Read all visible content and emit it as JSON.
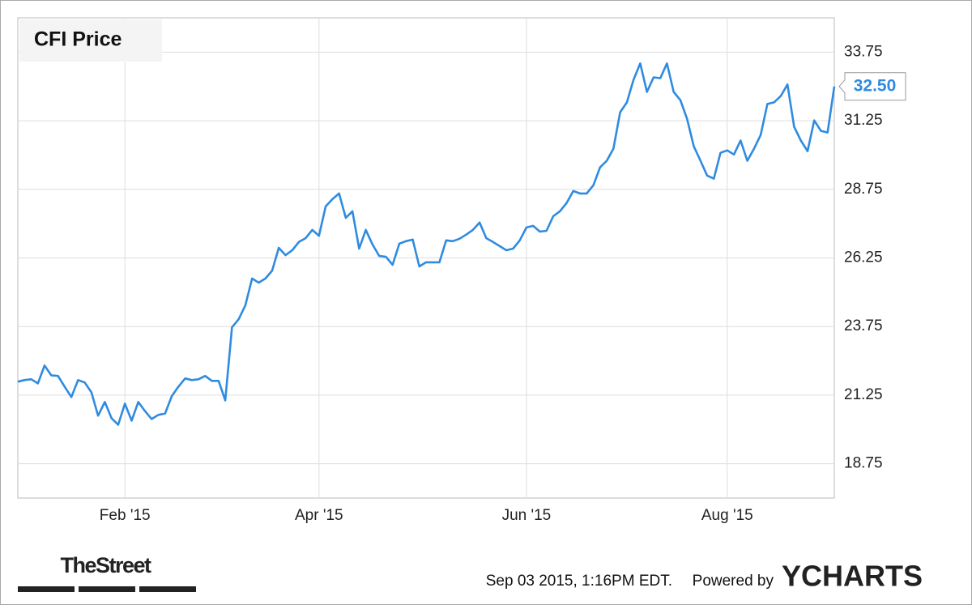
{
  "chart_data": {
    "type": "line",
    "title": "CFI Price",
    "categories": [
      null,
      null,
      null,
      null,
      null,
      null,
      null,
      null,
      null,
      null,
      null,
      null,
      null,
      null,
      null,
      null,
      "Feb '15",
      null,
      null,
      null,
      null,
      null,
      null,
      null,
      null,
      null,
      null,
      null,
      null,
      null,
      null,
      null,
      null,
      null,
      null,
      null,
      null,
      null,
      null,
      null,
      null,
      null,
      null,
      null,
      null,
      "Apr '15",
      null,
      null,
      null,
      null,
      null,
      null,
      null,
      null,
      null,
      null,
      null,
      null,
      null,
      null,
      null,
      null,
      null,
      null,
      null,
      null,
      null,
      null,
      null,
      null,
      null,
      null,
      null,
      null,
      null,
      null,
      "Jun '15",
      null,
      null,
      null,
      null,
      null,
      null,
      null,
      null,
      null,
      null,
      null,
      null,
      null,
      null,
      null,
      null,
      null,
      null,
      null,
      null,
      null,
      null,
      null,
      null,
      null,
      null,
      null,
      null,
      null,
      "Aug '15",
      null,
      null,
      null,
      null,
      null,
      null,
      null,
      null,
      null,
      null,
      null,
      null,
      null,
      null,
      null,
      null
    ],
    "series": [
      {
        "name": "CFI",
        "color": "#2f8be0",
        "values": [
          21.74,
          21.8,
          21.83,
          21.68,
          22.33,
          21.97,
          21.95,
          21.56,
          21.18,
          21.8,
          21.71,
          21.35,
          20.5,
          21.0,
          20.41,
          20.17,
          20.94,
          20.32,
          21.0,
          20.67,
          20.38,
          20.53,
          20.58,
          21.21,
          21.56,
          21.86,
          21.8,
          21.83,
          21.95,
          21.77,
          21.77,
          21.06,
          23.72,
          24.02,
          24.52,
          25.5,
          25.35,
          25.5,
          25.79,
          26.62,
          26.35,
          26.53,
          26.83,
          26.97,
          27.27,
          27.06,
          28.13,
          28.39,
          28.6,
          27.71,
          27.95,
          26.59,
          27.27,
          26.74,
          26.32,
          26.29,
          26.0,
          26.77,
          26.86,
          26.92,
          25.94,
          26.09,
          26.09,
          26.09,
          26.89,
          26.86,
          26.95,
          27.1,
          27.27,
          27.54,
          26.97,
          26.83,
          26.68,
          26.53,
          26.59,
          26.89,
          27.36,
          27.42,
          27.21,
          27.24,
          27.77,
          27.95,
          28.25,
          28.69,
          28.6,
          28.6,
          28.9,
          29.55,
          29.79,
          30.23,
          31.56,
          31.92,
          32.74,
          33.34,
          32.3,
          32.83,
          32.8,
          33.34,
          32.3,
          32.0,
          31.32,
          30.32,
          29.79,
          29.25,
          29.14,
          30.08,
          30.17,
          30.02,
          30.53,
          29.79,
          30.23,
          30.73,
          31.86,
          31.92,
          32.15,
          32.57,
          31.03,
          30.53,
          30.14,
          31.26,
          30.88,
          30.82,
          32.5
        ],
        "value_labels": {
          "122": "32.50"
        }
      }
    ],
    "ylim": [
      17.5,
      35.0
    ],
    "yticks": [
      18.75,
      21.25,
      23.75,
      26.25,
      28.75,
      31.25,
      33.75
    ],
    "grid": true
  },
  "footer": {
    "publisher": "TheStreet",
    "timestamp": "Sep 03 2015, 1:16PM EDT.",
    "powered_by": "Powered by",
    "brand": "YCHARTS"
  }
}
